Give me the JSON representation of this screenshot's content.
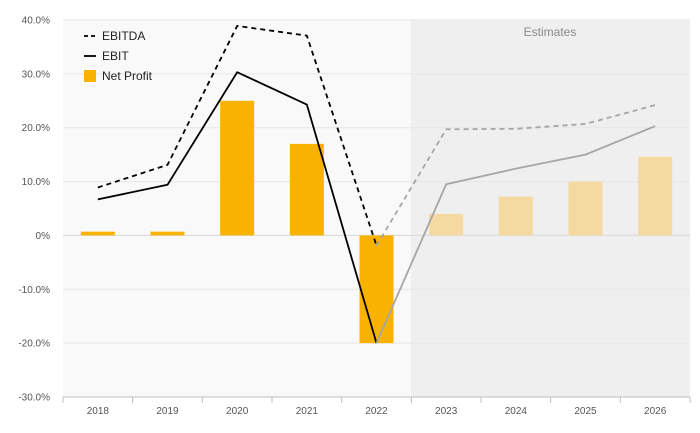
{
  "chart_data": {
    "type": "bar",
    "categories": [
      "2018",
      "2019",
      "2020",
      "2021",
      "2022",
      "2023",
      "2024",
      "2025",
      "2026"
    ],
    "estimates_start_index": 5,
    "estimates_label": "Estimates",
    "ylim": [
      -30,
      40
    ],
    "yticks": [
      40,
      30,
      20,
      10,
      0,
      -10,
      -20,
      -30
    ],
    "ytick_labels": [
      "40.0%",
      "30.0%",
      "20.0%",
      "10.0%",
      "0%",
      "-10.0%",
      "-20.0%",
      "-30.0%"
    ],
    "grid": true,
    "legend_position": "top-left",
    "series": [
      {
        "name": "EBITDA",
        "kind": "line",
        "style": "dashed",
        "values": [
          8.9,
          13.1,
          38.9,
          37.1,
          -1.9,
          19.7,
          19.8,
          20.7,
          24.2
        ]
      },
      {
        "name": "EBIT",
        "kind": "line",
        "style": "solid",
        "values": [
          6.7,
          9.4,
          30.3,
          24.3,
          -20.0,
          9.5,
          12.4,
          15.0,
          20.3
        ]
      },
      {
        "name": "Net Profit",
        "kind": "bar",
        "values": [
          0.7,
          0.7,
          25.0,
          17.0,
          -20.0,
          4.0,
          7.2,
          10.0,
          14.6
        ]
      }
    ],
    "colors": {
      "bar": "#f9b200",
      "bar_estimate": "#f4d9a0",
      "line_actual": "#000000",
      "line_estimate": "#a6a6a6",
      "plot_bg": "#f9f9f9",
      "estimate_bg": "#efefef"
    }
  }
}
